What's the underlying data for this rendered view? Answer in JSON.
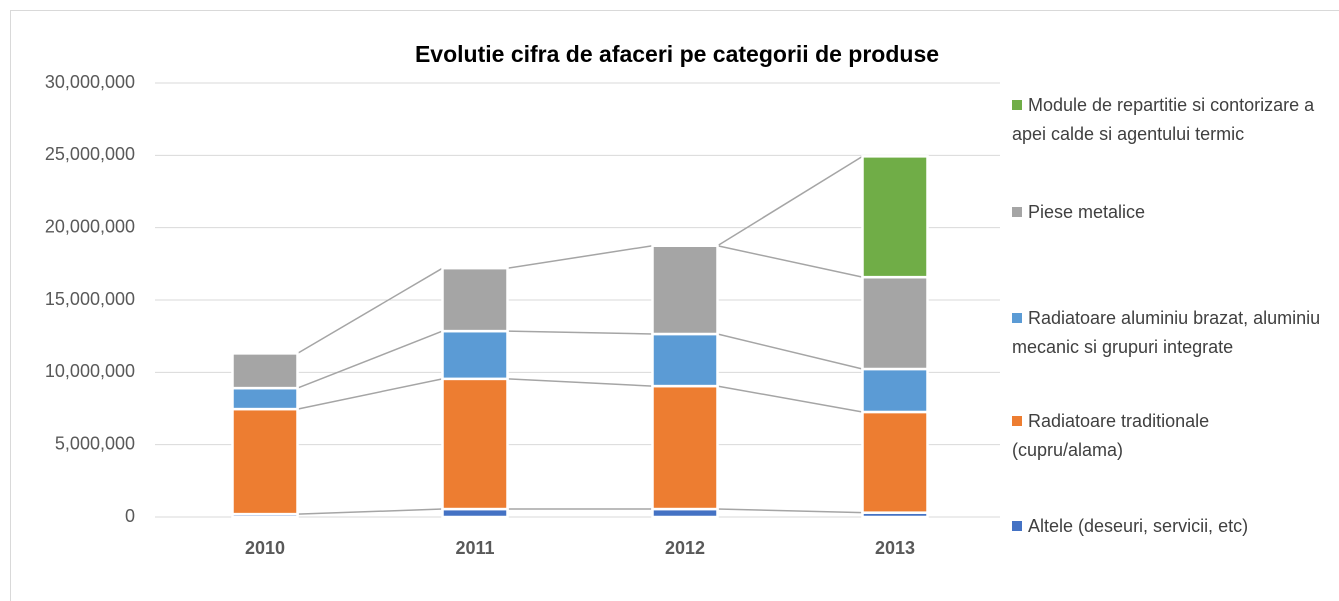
{
  "chart_data": {
    "type": "bar",
    "stacked": true,
    "title": "Evolutie cifra de afaceri pe categorii de produse",
    "categories": [
      "2010",
      "2011",
      "2012",
      "2013"
    ],
    "series": [
      {
        "name": "Altele (deseuri, servicii, etc)",
        "color": "#4472c4",
        "values": [
          200000,
          550000,
          550000,
          300000
        ]
      },
      {
        "name": "Radiatoare traditionale (cupru/alama)",
        "color": "#ed7d31",
        "values": [
          7260000,
          9000000,
          8500000,
          6960000
        ]
      },
      {
        "name": "Radiatoare aluminiu brazat, aluminiu mecanic si grupuri integrate",
        "color": "#5b9bd5",
        "values": [
          1450000,
          3300000,
          3600000,
          2970000
        ]
      },
      {
        "name": "Piese metalice",
        "color": "#a5a5a5",
        "values": [
          2400000,
          4350000,
          6100000,
          6350000
        ]
      },
      {
        "name": "Module de repartitie si contorizare a apei calde si agentului termic",
        "color": "#70ad47",
        "values": [
          0,
          0,
          0,
          8350000
        ]
      }
    ],
    "ylim": [
      0,
      30000000
    ],
    "yticks": [
      {
        "value": 0,
        "label": "0"
      },
      {
        "value": 5000000,
        "label": "5,000,000"
      },
      {
        "value": 10000000,
        "label": "10,000,000"
      },
      {
        "value": 15000000,
        "label": "15,000,000"
      },
      {
        "value": 20000000,
        "label": "20,000,000"
      },
      {
        "value": 25000000,
        "label": "25,000,000"
      },
      {
        "value": 30000000,
        "label": "30,000,000"
      }
    ],
    "grid": true,
    "legend": "right"
  }
}
